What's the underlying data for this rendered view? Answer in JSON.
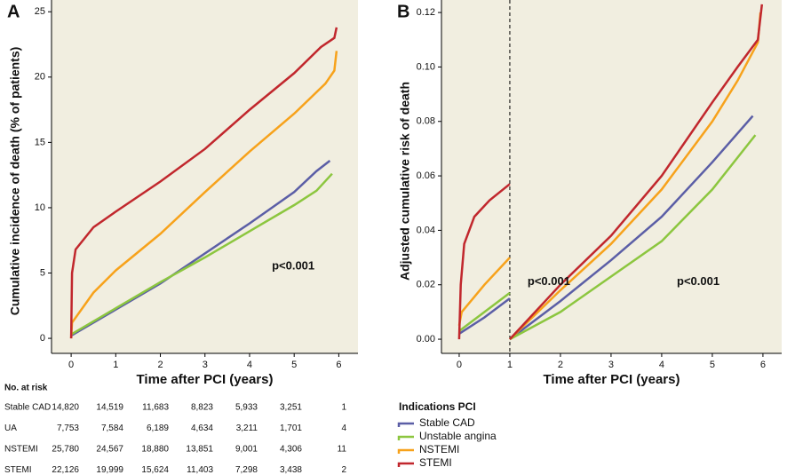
{
  "chart_data": [
    {
      "type": "line",
      "panel_label": "A",
      "xlabel": "Time after PCI (years)",
      "ylabel": "Cumulative incidence of death (% of patients)",
      "xlim": [
        -0.44,
        6.43
      ],
      "ylim": [
        -1.15,
        25.9
      ],
      "xticks": [
        0,
        1,
        2,
        3,
        4,
        5,
        6
      ],
      "yticks": [
        0,
        5,
        10,
        15,
        20,
        25
      ],
      "annotations": [
        "p<0.001"
      ],
      "series": [
        {
          "color": "#5b5ea6",
          "x": [
            0,
            1,
            2,
            3,
            4,
            5,
            5.5,
            5.8
          ],
          "values": [
            0.2,
            2.2,
            4.2,
            6.5,
            8.8,
            11.2,
            12.8,
            13.6
          ]
        },
        {
          "color": "#8cc63f",
          "x": [
            0,
            1,
            2,
            3,
            4,
            5,
            5.5,
            5.85
          ],
          "values": [
            0.3,
            2.3,
            4.3,
            6.2,
            8.2,
            10.2,
            11.3,
            12.6
          ]
        },
        {
          "color": "#f7a21b",
          "x": [
            0,
            0.02,
            0.5,
            1,
            2,
            3,
            4,
            5,
            5.7,
            5.9,
            5.95
          ],
          "values": [
            0,
            1.2,
            3.5,
            5.2,
            8,
            11.2,
            14.3,
            17.2,
            19.5,
            20.5,
            22
          ]
        },
        {
          "color": "#c1272d",
          "x": [
            0,
            0.02,
            0.1,
            0.5,
            1,
            2,
            3,
            4,
            5,
            5.6,
            5.9,
            5.95
          ],
          "values": [
            0,
            5,
            6.8,
            8.5,
            9.7,
            12,
            14.5,
            17.5,
            20.3,
            22.3,
            23,
            23.8
          ]
        }
      ]
    },
    {
      "type": "line",
      "panel_label": "B",
      "xlabel": "Time after PCI (years)",
      "ylabel": "Adjusted cumulative risk of death",
      "xlim": [
        -0.35,
        6.37
      ],
      "ylim": [
        -0.0052,
        0.1246
      ],
      "xticks": [
        0,
        1,
        2,
        3,
        4,
        5,
        6
      ],
      "yticks": [
        {
          "value": 0,
          "label": "0.00"
        },
        {
          "value": 0.02,
          "label": "0.02"
        },
        {
          "value": 0.04,
          "label": "0.04"
        },
        {
          "value": 0.06,
          "label": "0.06"
        },
        {
          "value": 0.08,
          "label": "0.08"
        },
        {
          "value": 0.1,
          "label": "0.10"
        },
        {
          "value": 0.12,
          "label": "0.12"
        }
      ],
      "vline": 1,
      "annotations": [
        "p<0.001",
        "p<0.001"
      ],
      "legend_title": "Indications PCI",
      "series": [
        {
          "name": "Stable CAD",
          "color": "#5b5ea6",
          "x": [
            0,
            0.5,
            1,
            1,
            1,
            2,
            3,
            4,
            5,
            5.8
          ],
          "values": [
            0.002,
            0.008,
            0.015,
            null,
            0,
            0.014,
            0.029,
            0.045,
            0.065,
            0.082
          ]
        },
        {
          "name": "Unstable angina",
          "color": "#8cc63f",
          "x": [
            0,
            0.5,
            1,
            1,
            1,
            2,
            3,
            4,
            5,
            5.85
          ],
          "values": [
            0.003,
            0.01,
            0.017,
            null,
            0,
            0.01,
            0.023,
            0.036,
            0.055,
            0.075
          ]
        },
        {
          "name": "NSTEMI",
          "color": "#f7a21b",
          "x": [
            0,
            0.05,
            0.5,
            1,
            1,
            1,
            2,
            3,
            4,
            5,
            5.5,
            5.9,
            5.95
          ],
          "values": [
            0.005,
            0.01,
            0.02,
            0.03,
            null,
            0,
            0.018,
            0.035,
            0.055,
            0.08,
            0.095,
            0.109,
            0.12
          ]
        },
        {
          "name": "STEMI",
          "color": "#c1272d",
          "x": [
            0,
            0.03,
            0.1,
            0.3,
            0.6,
            1,
            1,
            1,
            2,
            3,
            4,
            5,
            5.5,
            5.9,
            5.98
          ],
          "values": [
            0,
            0.02,
            0.035,
            0.045,
            0.051,
            0.057,
            null,
            0,
            0.02,
            0.038,
            0.06,
            0.087,
            0.1,
            0.11,
            0.123
          ]
        }
      ]
    }
  ],
  "risk_table": {
    "title": "No. at risk",
    "rows": [
      {
        "label": "Stable CAD",
        "values": [
          "14,820",
          "14,519",
          "11,683",
          "8,823",
          "5,933",
          "3,251",
          "1"
        ]
      },
      {
        "label": "UA",
        "values": [
          "7,753",
          "7,584",
          "6,189",
          "4,634",
          "3,211",
          "1,701",
          "4"
        ]
      },
      {
        "label": "NSTEMI",
        "values": [
          "25,780",
          "24,567",
          "18,880",
          "13,851",
          "9,001",
          "4,306",
          "11"
        ]
      },
      {
        "label": "STEMI",
        "values": [
          "22,126",
          "19,999",
          "15,624",
          "11,403",
          "7,298",
          "3,438",
          "2"
        ]
      }
    ]
  }
}
